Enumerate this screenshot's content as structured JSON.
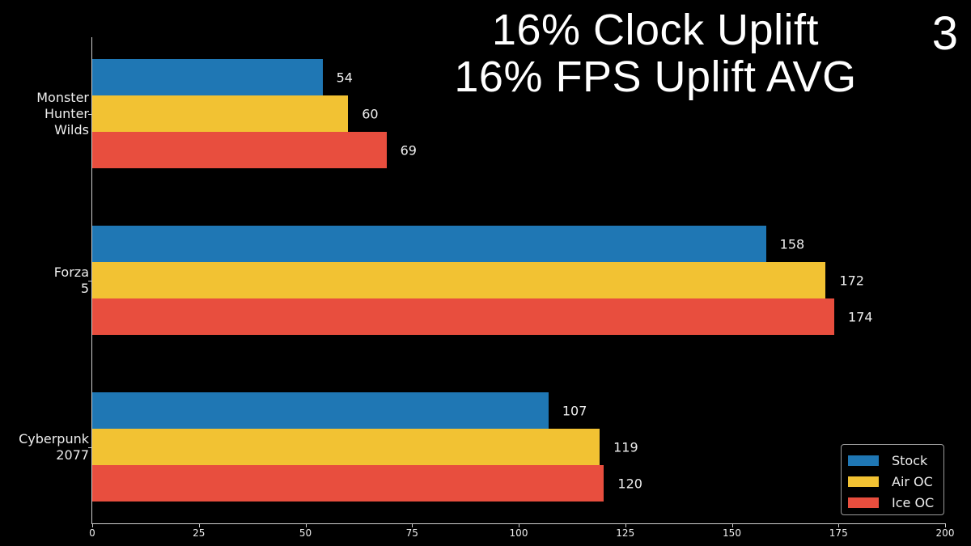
{
  "header": {
    "title_line1": "16% Clock Uplift",
    "title_line2": "16% FPS Uplift AVG",
    "page_number": "3"
  },
  "colors": {
    "background": "#000000",
    "stock": "#1f77b4",
    "air_oc": "#f2c233",
    "ice_oc": "#e84e3e",
    "axis": "#cfcfcf"
  },
  "chart_data": {
    "type": "bar",
    "orientation": "horizontal",
    "title": "16% Clock Uplift / 16% FPS Uplift AVG",
    "xlabel": "",
    "ylabel": "",
    "xlim": [
      0,
      200
    ],
    "xticks": [
      0,
      25,
      50,
      75,
      100,
      125,
      150,
      175,
      200
    ],
    "grid": false,
    "legend_position": "lower right",
    "categories": [
      "Monster Hunter Wilds",
      "Forza 5",
      "Cyberpunk 2077"
    ],
    "category_labels": [
      "Monster\nHunter\nWilds",
      "Forza\n5",
      "Cyberpunk\n2077"
    ],
    "series": [
      {
        "name": "Stock",
        "color": "#1f77b4",
        "values": [
          54,
          158,
          107
        ]
      },
      {
        "name": "Air OC",
        "color": "#f2c233",
        "values": [
          60,
          172,
          119
        ]
      },
      {
        "name": "Ice OC",
        "color": "#e84e3e",
        "values": [
          69,
          174,
          120
        ]
      }
    ]
  },
  "legend": {
    "items": [
      {
        "label": "Stock"
      },
      {
        "label": "Air OC"
      },
      {
        "label": "Ice OC"
      }
    ]
  },
  "xaxis": {
    "tick_labels": [
      "0",
      "25",
      "50",
      "75",
      "100",
      "125",
      "150",
      "175",
      "200"
    ]
  }
}
